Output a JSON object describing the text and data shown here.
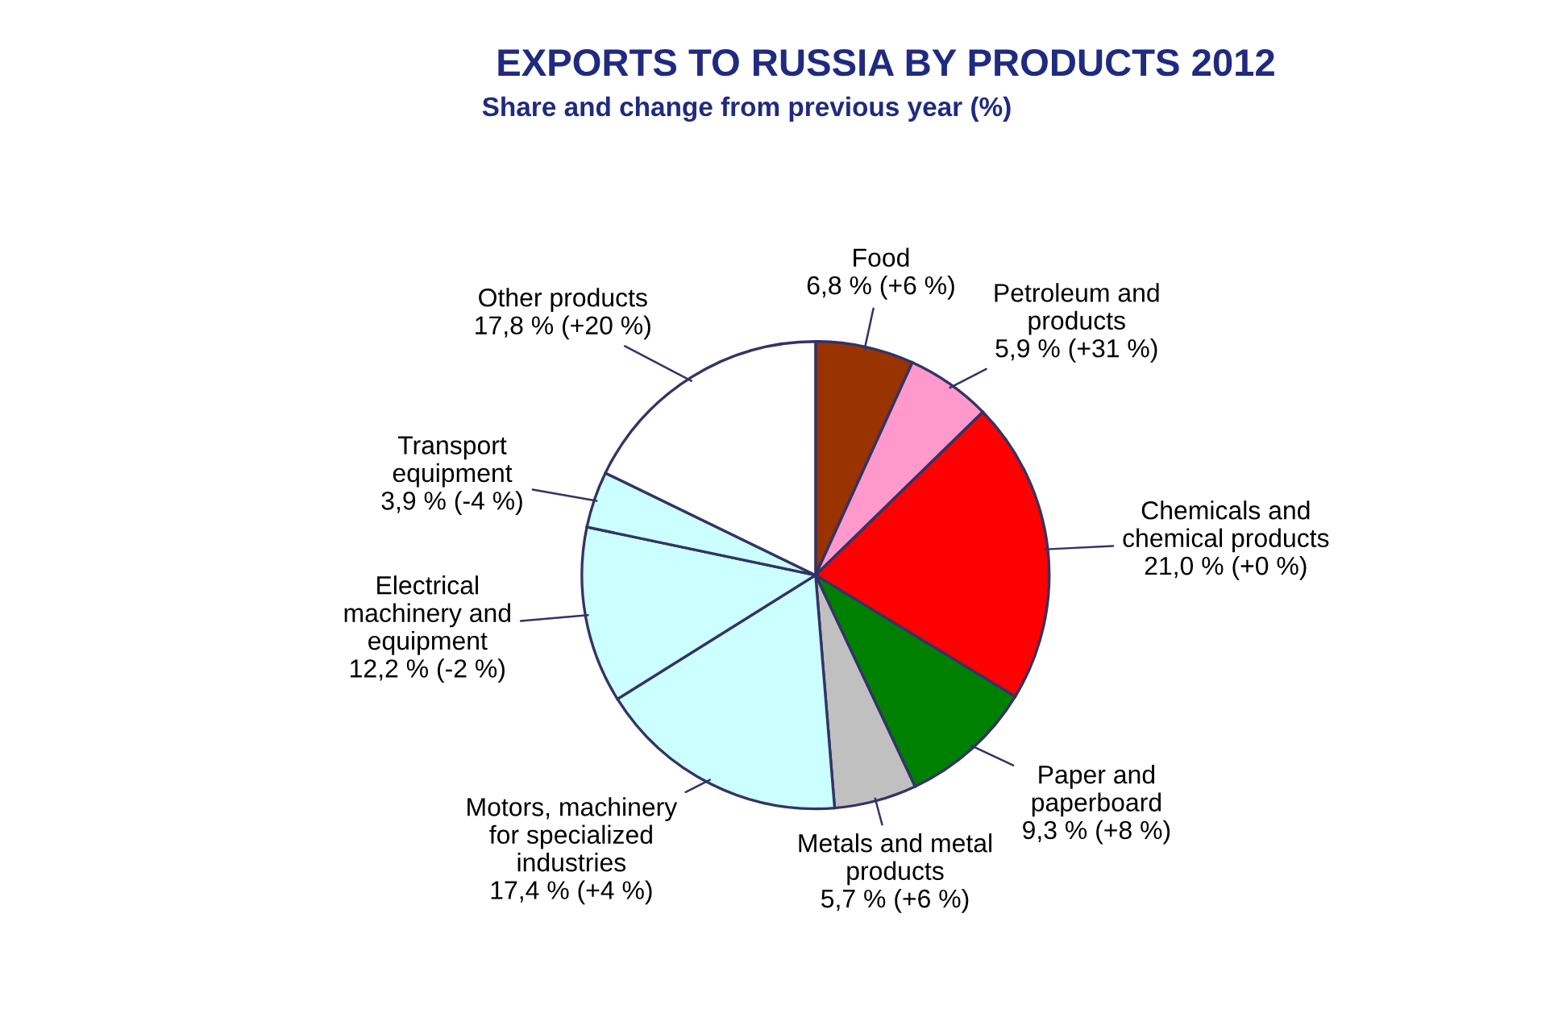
{
  "chart_data": {
    "type": "pie",
    "title": "EXPORTS TO RUSSIA BY PRODUCTS 2012",
    "subtitle": "Share and change from previous year (%)",
    "categories": [
      "Food",
      "Petroleum and\nproducts",
      "Chemicals and\nchemical products",
      "Paper and\npaperboard",
      "Metals and metal\nproducts",
      "Motors, machinery\nfor specialized\nindustries",
      "Electrical\nmachinery and\nequipment",
      "Transport\nequipment",
      "Other products"
    ],
    "values": [
      6.8,
      5.9,
      21.0,
      9.3,
      5.7,
      17.4,
      12.2,
      3.9,
      17.8
    ],
    "value_labels": [
      "6,8 % (+6 %)",
      "5,9 % (+31 %)",
      "21,0 % (+0 %)",
      "9,3 % (+8 %)",
      "5,7 % (+6 %)",
      "17,4 % (+4 %)",
      "12,2 % (-2 %)",
      "3,9 % (-4 %)",
      "17,8 % (+20 %)"
    ],
    "colors": [
      "#993300",
      "#ff99cc",
      "#ff0000",
      "#008000",
      "#c0c0c0",
      "#ccffff",
      "#ccffff",
      "#ccffff",
      "#ffffff"
    ],
    "legend": false
  }
}
